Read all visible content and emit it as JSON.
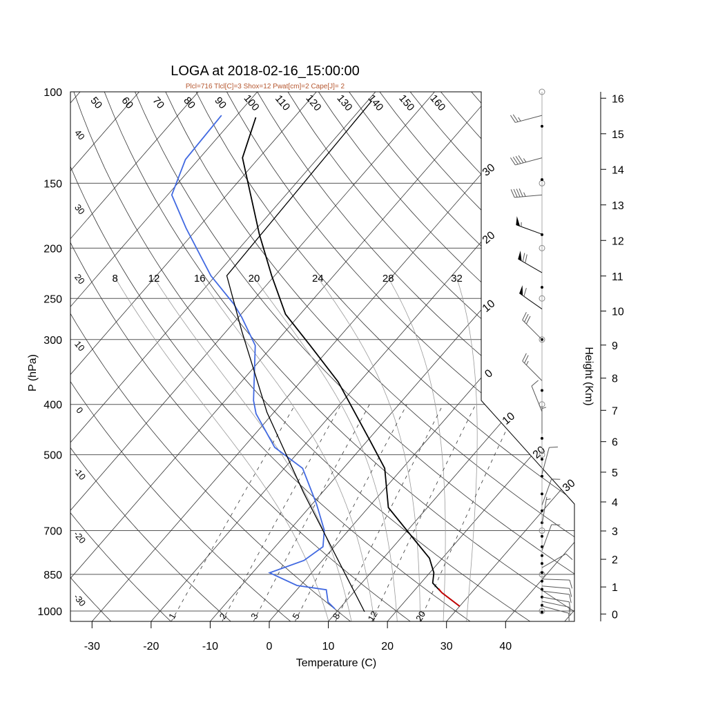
{
  "chart_data": {
    "type": "line",
    "subtype": "skew-t log-p",
    "title": "LOGA at 2018-02-16_15:00:00",
    "subtitle": "Plcl=716 Tlcl[C]=3 Shox=12 Pwat[cm]=2 Cape[J]= 2",
    "xlabel": "Temperature (C)",
    "ylabel": "P (hPa)",
    "y2label": "Height (Km)",
    "xlim": [
      -33,
      52
    ],
    "ylim_hpa": [
      1050,
      100
    ],
    "x_ticks": [
      "-30",
      "-20",
      "-10",
      "0",
      "10",
      "20",
      "30",
      "40"
    ],
    "x_tick_values": [
      -30,
      -20,
      -10,
      0,
      10,
      20,
      30,
      40
    ],
    "p_ticks": [
      "100",
      "150",
      "200",
      "250",
      "300",
      "400",
      "500",
      "700",
      "850",
      "1000"
    ],
    "p_tick_values": [
      100,
      150,
      200,
      250,
      300,
      400,
      500,
      700,
      850,
      1000
    ],
    "height_ticks": [
      "0",
      "1",
      "2",
      "3",
      "4",
      "5",
      "6",
      "7",
      "8",
      "9",
      "10",
      "11",
      "12",
      "13",
      "14",
      "15",
      "16"
    ],
    "dry_adiabat_labels_top": [
      {
        "theta": 50,
        "text": "50"
      },
      {
        "theta": 60,
        "text": "60"
      },
      {
        "theta": 70,
        "text": "70"
      },
      {
        "theta": 80,
        "text": "80"
      },
      {
        "theta": 90,
        "text": "90"
      },
      {
        "theta": 100,
        "text": "100"
      },
      {
        "theta": 110,
        "text": "110"
      },
      {
        "theta": 120,
        "text": "120"
      },
      {
        "theta": 130,
        "text": "130"
      },
      {
        "theta": 140,
        "text": "140"
      },
      {
        "theta": 150,
        "text": "150"
      },
      {
        "theta": 160,
        "text": "160"
      }
    ],
    "dry_adiabat_labels_left": [
      {
        "theta": 40,
        "text": "40"
      },
      {
        "theta": 30,
        "text": "30"
      },
      {
        "theta": 20,
        "text": "20"
      },
      {
        "theta": 10,
        "text": "10"
      },
      {
        "theta": 0,
        "text": "0"
      },
      {
        "theta": -10,
        "text": "-10"
      },
      {
        "theta": -20,
        "text": "-20"
      },
      {
        "theta": -30,
        "text": "-30"
      }
    ],
    "isotherm_labels": [
      {
        "t": -30,
        "text": "30"
      },
      {
        "t": -20,
        "text": "20"
      },
      {
        "t": -10,
        "text": "10"
      },
      {
        "t": 0,
        "text": "0"
      },
      {
        "t": 10,
        "text": "10"
      },
      {
        "t": 20,
        "text": "20"
      },
      {
        "t": 30,
        "text": "30"
      }
    ],
    "moist_adiabat_labels": [
      "8",
      "12",
      "16",
      "20",
      "24",
      "28",
      "32"
    ],
    "moist_adiabat_values": [
      8,
      12,
      16,
      20,
      24,
      28,
      32
    ],
    "mixing_ratio_labels": [
      "1",
      "2",
      "3",
      "5",
      "8",
      "12",
      "20"
    ],
    "mixing_ratio_values": [
      1,
      2,
      3,
      5,
      8,
      12,
      20
    ],
    "series": [
      {
        "name": "temperature",
        "color": "#000000",
        "points": [
          [
            112,
            -76.5
          ],
          [
            134,
            -72.8
          ],
          [
            188,
            -58.7
          ],
          [
            226,
            -50.5
          ],
          [
            268,
            -42.5
          ],
          [
            308,
            -33.7
          ],
          [
            362,
            -23.6
          ],
          [
            472,
            -9.3
          ],
          [
            531,
            -3.0
          ],
          [
            632,
            3.4
          ],
          [
            724,
            12.1
          ],
          [
            791,
            17.8
          ],
          [
            844,
            20.7
          ],
          [
            883,
            22.0
          ],
          [
            922,
            25.0
          ],
          [
            979,
            30.0
          ]
        ]
      },
      {
        "name": "temperature-surface-layer",
        "color": "#cc0000",
        "points": [
          [
            905,
            23.8
          ],
          [
            922,
            25.0
          ],
          [
            979,
            30.0
          ]
        ]
      },
      {
        "name": "dewpoint",
        "color": "#4169e1",
        "points": [
          [
            111,
            -82.6
          ],
          [
            135,
            -82.2
          ],
          [
            158,
            -79.3
          ],
          [
            183,
            -72.0
          ],
          [
            226,
            -60.8
          ],
          [
            256,
            -52.8
          ],
          [
            272,
            -49.4
          ],
          [
            308,
            -43.0
          ],
          [
            393,
            -35.2
          ],
          [
            417,
            -32.8
          ],
          [
            484,
            -24.7
          ],
          [
            531,
            -16.9
          ],
          [
            622,
            -9.3
          ],
          [
            699,
            -4.1
          ],
          [
            752,
            -1.9
          ],
          [
            799,
            -3.1
          ],
          [
            844,
            -7.1
          ],
          [
            893,
            -0.6
          ],
          [
            910,
            5.0
          ],
          [
            961,
            7.1
          ],
          [
            991,
            9.3
          ]
        ]
      },
      {
        "name": "parcel",
        "color": "#000000",
        "points": [
          [
            104,
            -59.3
          ],
          [
            226,
            -58.1
          ],
          [
            289,
            -47.4
          ],
          [
            414,
            -31.2
          ],
          [
            591,
            -13.2
          ],
          [
            1003,
            14.7
          ]
        ]
      }
    ],
    "sounding_levels_hpa": [
      116.5,
      147.6,
      188.4,
      238,
      300,
      376,
      465,
      510,
      550,
      595,
      641,
      676,
      718,
      752,
      782,
      810,
      843,
      876,
      908,
      940,
      975,
      1005
    ],
    "wind_barbs": [
      {
        "p": 111,
        "dir": 255,
        "spd": 25
      },
      {
        "p": 134,
        "dir": 255,
        "spd": 45
      },
      {
        "p": 158,
        "dir": 265,
        "spd": 45
      },
      {
        "p": 188,
        "dir": 290,
        "spd": 55
      },
      {
        "p": 223,
        "dir": 300,
        "spd": 70
      },
      {
        "p": 262,
        "dir": 305,
        "spd": 60
      },
      {
        "p": 300,
        "dir": 315,
        "spd": 30
      },
      {
        "p": 360,
        "dir": 315,
        "spd": 25
      },
      {
        "p": 413,
        "dir": 338,
        "spd": 10
      },
      {
        "p": 455,
        "dir": 0,
        "spd": 5
      },
      {
        "p": 545,
        "dir": 15,
        "spd": 10
      },
      {
        "p": 625,
        "dir": 20,
        "spd": 10
      },
      {
        "p": 680,
        "dir": 10,
        "spd": 5
      },
      {
        "p": 765,
        "dir": 20,
        "spd": 10
      },
      {
        "p": 825,
        "dir": 60,
        "spd": 10
      },
      {
        "p": 868,
        "dir": 92,
        "spd": 10
      },
      {
        "p": 895,
        "dir": 95,
        "spd": 10
      },
      {
        "p": 915,
        "dir": 97,
        "spd": 10
      },
      {
        "p": 940,
        "dir": 100,
        "spd": 10
      },
      {
        "p": 958,
        "dir": 102,
        "spd": 10
      },
      {
        "p": 978,
        "dir": 105,
        "spd": 10
      }
    ],
    "grid": true
  }
}
